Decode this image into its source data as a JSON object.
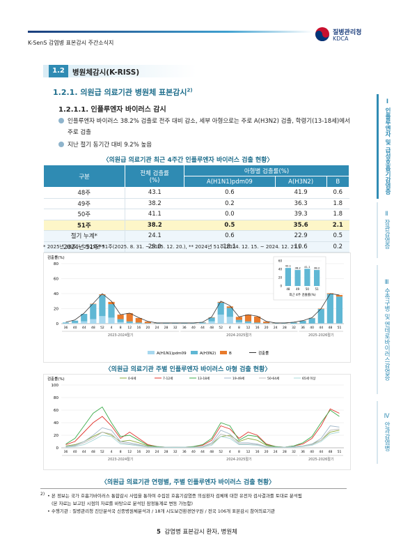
{
  "header": {
    "left": "K-SenS 감염병 표본감시 주간소식지",
    "logo_ko": "질병관리청",
    "logo_en": "KDCA"
  },
  "section": {
    "number": "1.2",
    "title": "병원체감시(K-RISS)"
  },
  "subsection": {
    "title": "1.2.1. 의원급 의료기관 병원체 표본감시",
    "note_ref": "2)"
  },
  "subsubsection": {
    "title": "1.2.1.1. 인플루엔자 바이러스 감시"
  },
  "bullets": [
    "인플루엔자 바이러스 38.2% 검출로 전주 대비 감소, 세부 아형으로는 주로 A(H3N2) 검출, 학령기(13-18세)에서",
    "주로 검출",
    "지난 절기 동기간 대비 9.2% 높음"
  ],
  "table": {
    "caption": "〈의원급 의료기관 최근 4주간 인플루엔자 바이러스 검출 현황〉",
    "header": {
      "group": "구분",
      "total": "전체 검출률",
      "total_unit": "(%)",
      "subtype": "아형별 검출률(%)",
      "subtypes": [
        "A(H1N1)pdm09",
        "A(H3N2)",
        "B"
      ]
    },
    "rows": [
      [
        "48주",
        "43.1",
        "0.6",
        "41.9",
        "0.6"
      ],
      [
        "49주",
        "38.2",
        "0.2",
        "36.3",
        "1.8"
      ],
      [
        "50주",
        "41.1",
        "0.0",
        "39.3",
        "1.8"
      ],
      [
        "51주",
        "38.2",
        "0.5",
        "35.6",
        "2.1"
      ],
      [
        "절기 누계*",
        "24.1",
        "0.6",
        "22.9",
        "0.5"
      ],
      [
        "2024년 51주**",
        "29.0",
        "18.1",
        "10.6",
        "0.2"
      ]
    ],
    "note": "* 2025년 36주 ~ 2025년 51주(2025. 8. 31. ~ 2025. 12. 20.), ** 2024년 51주(2024. 12. 15. ~ 2024. 12. 21.)"
  },
  "chart1": {
    "type": "bar",
    "y_label": "검출률(%)",
    "caption": "〈의원급 의료기관 주별 인플루엔자 바이러스 아형 검출 현황〉",
    "categories": [
      "36",
      "40",
      "44",
      "48",
      "52",
      "4",
      "8",
      "12",
      "16",
      "20",
      "24",
      "28",
      "32",
      "36",
      "40",
      "44",
      "48",
      "52",
      "4",
      "8",
      "12",
      "16",
      "20",
      "24",
      "28",
      "32",
      "36",
      "40",
      "44",
      "48",
      "51"
    ],
    "seasons": [
      "2023-2024절기",
      "2024-2025절기",
      "2025-2026절기"
    ],
    "series": [
      {
        "name": "A(H1N1)pdm09",
        "color": "#a7d8ef",
        "values": [
          0.5,
          1,
          3,
          6,
          10,
          8,
          2,
          1,
          0.5,
          0.2,
          0,
          0,
          0,
          0,
          0,
          0.5,
          3,
          12,
          9,
          2,
          1,
          0.5,
          0.2,
          0,
          0,
          0,
          0.2,
          0.3,
          0.5,
          0.5,
          0.5
        ]
      },
      {
        "name": "A(H3N2)",
        "color": "#5fb7d4",
        "values": [
          1,
          3,
          10,
          20,
          28,
          18,
          4,
          2,
          1,
          0.5,
          0.5,
          0.5,
          0.5,
          0.5,
          0.5,
          1,
          5,
          16,
          12,
          3,
          2,
          1,
          0.5,
          0.5,
          0.5,
          1.5,
          3.5,
          7,
          19,
          39,
          35.6
        ]
      },
      {
        "name": "B",
        "color": "#e87a2c",
        "values": [
          0,
          0,
          0,
          0.5,
          1,
          3,
          6,
          11,
          6,
          2,
          0.3,
          0.2,
          0.2,
          0.2,
          0.2,
          0.3,
          0.5,
          1,
          2,
          4,
          9,
          8,
          2,
          0.3,
          0.3,
          0.3,
          0.2,
          0.3,
          0.5,
          1,
          2.1
        ]
      }
    ],
    "line": {
      "name": "검출률",
      "color": "#333333",
      "values": [
        2,
        5,
        14,
        27,
        40,
        30,
        12,
        14,
        8,
        3,
        1,
        1,
        1,
        1,
        1,
        2,
        9,
        30,
        24,
        9,
        12,
        10,
        3,
        1,
        1,
        2,
        4,
        8,
        20,
        40,
        38.2
      ]
    },
    "ylim": [
      0,
      80
    ],
    "yticks": [
      0,
      20,
      40,
      60,
      80
    ],
    "inset": {
      "title": "최근 4주 검출률(%)",
      "categories": [
        "48",
        "49",
        "50",
        "51"
      ],
      "values": [
        43.1,
        38.2,
        41.1,
        38.2
      ],
      "color": "#5fb7d4",
      "ylim": [
        0,
        60
      ],
      "yticks": [
        0,
        20,
        40,
        60
      ]
    }
  },
  "chart2": {
    "type": "line",
    "y_label": "검출률(%)",
    "caption": "〈의원급 의료기관 연령별, 주별 인플루엔자 바이러스 검출 현황〉",
    "categories": [
      "36",
      "40",
      "44",
      "48",
      "52",
      "4",
      "8",
      "12",
      "16",
      "20",
      "24",
      "28",
      "32",
      "36",
      "40",
      "44",
      "48",
      "52",
      "4",
      "8",
      "12",
      "16",
      "20",
      "24",
      "28",
      "32",
      "36",
      "40",
      "44",
      "48",
      "51"
    ],
    "seasons": [
      "2023-2024절기",
      "2024-2025절기",
      "2025-2026절기"
    ],
    "series": [
      {
        "name": "0-6세",
        "color": "#8aa83a",
        "values": [
          3,
          5,
          10,
          18,
          25,
          20,
          10,
          12,
          8,
          3,
          1,
          1,
          1,
          1,
          1,
          2,
          6,
          18,
          20,
          10,
          15,
          12,
          4,
          1,
          1,
          2,
          3,
          6,
          12,
          25,
          28
        ]
      },
      {
        "name": "7-12세",
        "color": "#e0312a",
        "values": [
          5,
          10,
          25,
          40,
          50,
          35,
          15,
          25,
          15,
          5,
          2,
          1,
          1,
          1,
          2,
          4,
          12,
          35,
          30,
          15,
          25,
          20,
          6,
          2,
          1,
          3,
          6,
          15,
          35,
          62,
          55
        ]
      },
      {
        "name": "13-18세",
        "color": "#3cab4a",
        "values": [
          6,
          15,
          35,
          55,
          65,
          40,
          18,
          20,
          12,
          4,
          2,
          1,
          1,
          1,
          2,
          5,
          15,
          40,
          35,
          12,
          20,
          18,
          5,
          2,
          1,
          3,
          8,
          18,
          40,
          60,
          50
        ]
      },
      {
        "name": "19-49세",
        "color": "#9fb6c8",
        "values": [
          2,
          4,
          10,
          20,
          32,
          28,
          10,
          8,
          5,
          2,
          1,
          1,
          1,
          1,
          1,
          2,
          8,
          28,
          22,
          8,
          8,
          6,
          2,
          1,
          1,
          2,
          3,
          6,
          15,
          35,
          33
        ]
      },
      {
        "name": "50-64세",
        "color": "#bdbdbd",
        "values": [
          1,
          3,
          8,
          15,
          25,
          22,
          8,
          6,
          4,
          2,
          1,
          1,
          1,
          1,
          1,
          2,
          6,
          22,
          18,
          6,
          6,
          5,
          2,
          1,
          1,
          1,
          3,
          5,
          12,
          28,
          30
        ]
      },
      {
        "name": "65세 이상",
        "color": "#a8d8d8",
        "values": [
          1,
          2,
          5,
          12,
          20,
          18,
          6,
          5,
          3,
          1,
          1,
          1,
          0.5,
          1,
          1,
          1,
          4,
          18,
          15,
          5,
          5,
          4,
          1,
          1,
          1,
          1,
          2,
          4,
          10,
          22,
          25
        ]
      }
    ],
    "ylim": [
      0,
      100
    ],
    "yticks": [
      0,
      20,
      40,
      60,
      80,
      100
    ]
  },
  "footnotes": [
    "2)",
    "• 본 정보는 국가 호흡기바이러스 통합감시 사업을 통하여 수집된 호흡기감염증 의심환자 검체에 대한 유전자 검사결과를 토대로 분석됨",
    "(본 자료는 보고된 시점의 자료를 바탕으로 분석된 잠정통계로 변동 가능함)",
    "• 수행기관 : 질병관리청 진단분석국 신종병원체분석과 / 18개 시도보건환경연구원 / 전국 106개 표본감시 참여의료기관"
  ],
  "footer": {
    "page": "5",
    "text": "감염병 표본감시 환자, 병원체"
  },
  "tabs": [
    "Ⅰ 인플루엔자 및 급성호흡기감염증",
    "Ⅱ 장관감염증",
    "Ⅲ 수족구병 및 엔테로바이러스감염증",
    "Ⅳ 안과감염병"
  ]
}
